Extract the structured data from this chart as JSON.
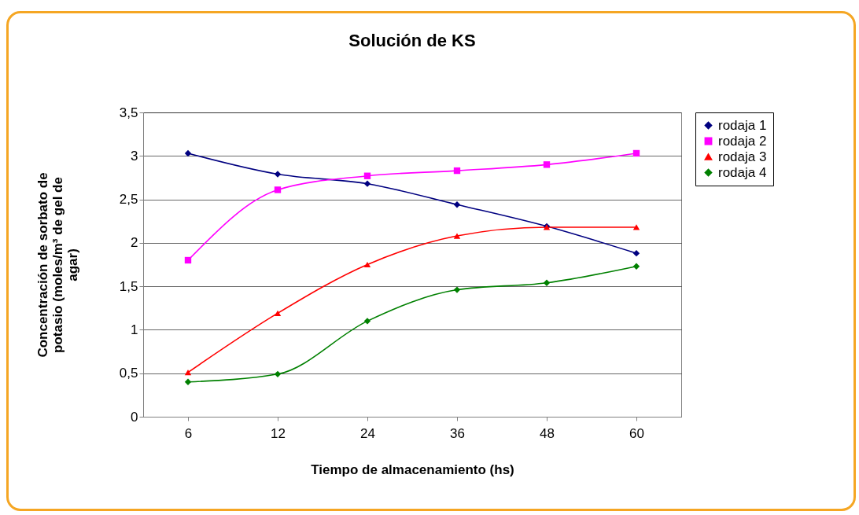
{
  "chart_data": {
    "type": "line",
    "title": "Solución de KS",
    "xlabel": "Tiempo de almacenamiento (hs)",
    "ylabel": "Concentración de sorbato de potasio (moles/m³ de gel de agar)",
    "categories": [
      "6",
      "12",
      "24",
      "36",
      "48",
      "60"
    ],
    "series": [
      {
        "name": "rodaja 1",
        "color": "#000080",
        "marker": "diamond",
        "values": [
          3.03,
          2.79,
          2.68,
          2.44,
          2.19,
          1.88
        ]
      },
      {
        "name": "rodaja 2",
        "color": "#ff00ff",
        "marker": "square",
        "values": [
          1.8,
          2.61,
          2.77,
          2.83,
          2.9,
          3.03
        ]
      },
      {
        "name": "rodaja 3",
        "color": "#ff0000",
        "marker": "triangle",
        "values": [
          0.51,
          1.19,
          1.75,
          2.08,
          2.18,
          2.18
        ]
      },
      {
        "name": "rodaja 4",
        "color": "#008000",
        "marker": "diamond",
        "values": [
          0.4,
          0.49,
          1.1,
          1.46,
          1.54,
          1.73
        ]
      }
    ],
    "ylim": [
      0,
      3.5
    ],
    "yticks": [
      {
        "value": 0,
        "label": "0"
      },
      {
        "value": 0.5,
        "label": "0,5"
      },
      {
        "value": 1,
        "label": "1"
      },
      {
        "value": 1.5,
        "label": "1,5"
      },
      {
        "value": 2,
        "label": "2"
      },
      {
        "value": 2.5,
        "label": "2,5"
      },
      {
        "value": 3,
        "label": "3"
      },
      {
        "value": 3.5,
        "label": "3,5"
      }
    ],
    "grid": "y",
    "legend": "right"
  }
}
